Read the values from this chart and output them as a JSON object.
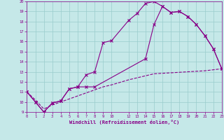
{
  "xlabel": "Windchill (Refroidissement éolien,°C)",
  "bg_color": "#c5e8e8",
  "line_color": "#880088",
  "ylim": [
    9,
    20
  ],
  "xlim": [
    0,
    23
  ],
  "yticks": [
    9,
    10,
    11,
    12,
    13,
    14,
    15,
    16,
    17,
    18,
    19,
    20
  ],
  "xticks": [
    0,
    1,
    2,
    3,
    4,
    5,
    6,
    7,
    8,
    9,
    10,
    12,
    13,
    14,
    15,
    16,
    17,
    18,
    19,
    20,
    21,
    22,
    23
  ],
  "curve1_x": [
    0,
    1,
    2,
    3,
    4,
    5,
    6,
    7,
    8,
    9,
    10,
    12,
    13,
    14,
    15,
    16,
    17,
    18,
    19,
    20,
    21,
    22,
    23
  ],
  "curve1_y": [
    11.0,
    10.0,
    9.0,
    9.9,
    10.1,
    11.3,
    11.5,
    12.7,
    13.0,
    15.9,
    16.1,
    18.1,
    18.8,
    19.8,
    20.0,
    19.5,
    18.9,
    19.0,
    18.5,
    17.7,
    16.6,
    15.3,
    13.3
  ],
  "curve2_x": [
    0,
    1,
    2,
    3,
    4,
    5,
    6,
    7,
    8,
    14,
    15,
    16,
    17,
    18,
    19,
    20,
    21,
    22,
    23
  ],
  "curve2_y": [
    11.0,
    10.0,
    9.0,
    9.9,
    10.1,
    11.3,
    11.5,
    11.5,
    11.5,
    14.3,
    17.7,
    19.5,
    18.9,
    19.0,
    18.5,
    17.7,
    16.6,
    15.3,
    13.3
  ],
  "curve3_x": [
    0,
    1,
    2,
    3,
    4,
    5,
    6,
    7,
    8,
    9,
    10,
    12,
    13,
    14,
    15,
    16,
    17,
    18,
    19,
    20,
    21,
    22,
    23
  ],
  "curve3_y": [
    11.0,
    10.2,
    9.3,
    9.7,
    10.0,
    10.3,
    10.6,
    10.9,
    11.2,
    11.5,
    11.7,
    12.2,
    12.4,
    12.6,
    12.8,
    12.85,
    12.9,
    12.95,
    13.0,
    13.05,
    13.1,
    13.2,
    13.3
  ],
  "grid_color": "#99cccc",
  "font_color": "#880088"
}
